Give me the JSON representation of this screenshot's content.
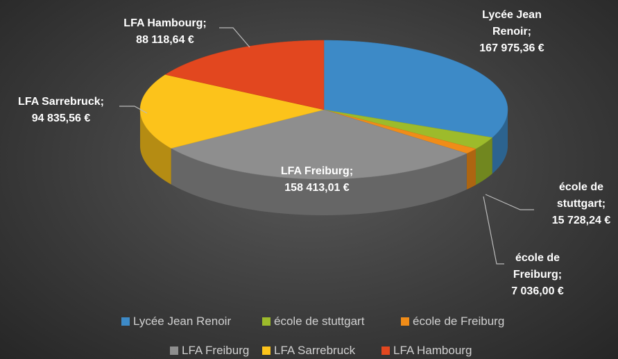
{
  "chart_data": {
    "type": "pie3d",
    "categories": [
      "Lycée Jean Renoir",
      "école de stuttgart",
      "école de Freiburg",
      "LFA Freiburg",
      "LFA Sarrebruck",
      "LFA Hambourg"
    ],
    "values": [
      167975.36,
      15728.24,
      7036.0,
      158413.01,
      94835.56,
      88118.64
    ],
    "value_labels": [
      "167 975,36 €",
      "15 728,24 €",
      "7 036,00 €",
      "158 413,01 €",
      "94 835,56 €",
      "88 118,64 €"
    ],
    "label_separator": ";",
    "colors": [
      "#3d8ac7",
      "#9dbb2b",
      "#f08c18",
      "#8e8e8e",
      "#fcc31b",
      "#e2471f"
    ],
    "legend": "bottom"
  }
}
